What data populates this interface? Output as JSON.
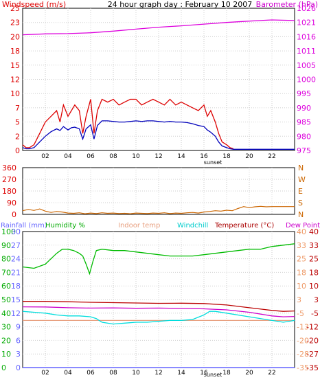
{
  "chart_data": [
    {
      "type": "line",
      "title": "24 hour graph day : February 10 2007",
      "ylabel_left": "Windspeed (m/s)",
      "ylabel_right": "Barometer (hPa)",
      "y_left_ticks": [
        "0",
        "2",
        "5",
        "7",
        "10",
        "12",
        "15",
        "18",
        "20",
        "23",
        "25"
      ],
      "y_right_ticks": [
        "975",
        "980",
        "985",
        "990",
        "995",
        "1000",
        "1005",
        "1011",
        "1016",
        "1021",
        "1026"
      ],
      "ylim_left": [
        0,
        25
      ],
      "ylim_right": [
        975,
        1026
      ],
      "x_ticks": [
        "02",
        "04",
        "06",
        "08",
        "10",
        "12",
        "14",
        "16",
        "18",
        "20",
        "22"
      ],
      "x_annotation": "sunset",
      "xlim": [
        0,
        24
      ],
      "grid": true,
      "series": [
        {
          "name": "Windspeed (m/s)",
          "color": "#dd0000",
          "axis": "left",
          "style": "gust",
          "x": [
            0,
            0.3,
            0.6,
            1,
            1.5,
            2,
            2.5,
            3,
            3.3,
            3.6,
            4,
            4.3,
            4.6,
            5,
            5.3,
            5.6,
            6,
            6.3,
            6.6,
            7,
            7.5,
            8,
            8.5,
            9,
            9.5,
            10,
            10.5,
            11,
            11.5,
            12,
            12.5,
            13,
            13.5,
            14,
            14.5,
            15,
            15.5,
            16,
            16.3,
            16.6,
            17,
            17.3,
            17.6,
            18,
            18.3,
            18.6
          ],
          "values": [
            1,
            0.5,
            0.5,
            1,
            3,
            5,
            6,
            7,
            5,
            8,
            6,
            7,
            8,
            7,
            3,
            6,
            9,
            3,
            7,
            9,
            8.5,
            9,
            8,
            8.5,
            9,
            9,
            8,
            8.5,
            9,
            8.5,
            8,
            9,
            8,
            8.5,
            8,
            7.5,
            7,
            8,
            6,
            7,
            5,
            3,
            1.5,
            1,
            0.5,
            0.3
          ]
        },
        {
          "name": "Windspeed avg",
          "color": "#0000bb",
          "axis": "left",
          "style": "line",
          "x": [
            0,
            0.3,
            0.6,
            1,
            1.5,
            2,
            2.5,
            3,
            3.3,
            3.6,
            4,
            4.3,
            4.6,
            5,
            5.3,
            5.6,
            6,
            6.3,
            6.6,
            7,
            7.5,
            8,
            8.5,
            9,
            9.5,
            10,
            10.5,
            11,
            11.5,
            12,
            12.5,
            13,
            13.5,
            14,
            14.5,
            15,
            15.5,
            16,
            16.3,
            16.6,
            17,
            17.3,
            17.6,
            18,
            18.3,
            18.6,
            19,
            24
          ],
          "values": [
            0.5,
            0.3,
            0.3,
            0.5,
            1.5,
            2.5,
            3.3,
            3.8,
            3.5,
            4.2,
            3.6,
            4,
            4.1,
            3.8,
            2,
            3.8,
            4.5,
            2,
            4.4,
            5.2,
            5.2,
            5.1,
            5,
            5,
            5.1,
            5.2,
            5.1,
            5.2,
            5.2,
            5.1,
            5,
            5.1,
            5,
            5,
            4.9,
            4.7,
            4.4,
            4.2,
            3.6,
            3.2,
            2.5,
            1.5,
            0.8,
            0.5,
            0.3,
            0.2,
            0.2,
            0.2
          ]
        },
        {
          "name": "Barometer (hPa)",
          "color": "#dd00dd",
          "axis": "right",
          "style": "line",
          "x": [
            0,
            2,
            4,
            6,
            8,
            10,
            12,
            14,
            16,
            18,
            20,
            22,
            24
          ],
          "values": [
            1016.5,
            1016.8,
            1016.9,
            1017.2,
            1017.8,
            1018.5,
            1019.2,
            1019.7,
            1020.3,
            1020.9,
            1021.4,
            1021.8,
            1021.6
          ]
        }
      ]
    },
    {
      "type": "line",
      "y_left_ticks": [
        "0",
        "90",
        "180",
        "270",
        "360"
      ],
      "y_right_ticks": [
        "N",
        "S",
        "E",
        "W",
        "N"
      ],
      "ylim": [
        0,
        360
      ],
      "x_ticks": [
        "02",
        "04",
        "06",
        "08",
        "10",
        "12",
        "14",
        "16",
        "18",
        "20",
        "22"
      ],
      "xlim": [
        0,
        24
      ],
      "grid": true,
      "series": [
        {
          "color": "#cc6600",
          "x": [
            0,
            0.5,
            1,
            1.5,
            2,
            2.5,
            3,
            3.5,
            4,
            4.5,
            5,
            5.5,
            6,
            6.5,
            7,
            7.5,
            8,
            8.5,
            9,
            9.5,
            10,
            10.5,
            11,
            11.5,
            12,
            12.5,
            13,
            13.5,
            14,
            14.5,
            15,
            15.5,
            16,
            16.5,
            17,
            17.5,
            18,
            18.5,
            19,
            19.5,
            20,
            20.5,
            21,
            21.5,
            22,
            22.5,
            23,
            23.5,
            24
          ],
          "values": [
            28,
            38,
            30,
            42,
            25,
            15,
            22,
            18,
            10,
            8,
            12,
            5,
            10,
            6,
            12,
            8,
            10,
            6,
            8,
            5,
            10,
            8,
            6,
            10,
            8,
            12,
            6,
            10,
            8,
            12,
            15,
            10,
            18,
            22,
            28,
            25,
            32,
            28,
            45,
            60,
            52,
            58,
            62,
            58,
            60,
            60,
            60,
            60,
            60
          ]
        }
      ]
    },
    {
      "type": "line",
      "legend": [
        "Rainfall (mm)",
        "Humidity %",
        "Indoor temp",
        "Windchill",
        "Temperature (°C)",
        "Dew Point"
      ],
      "y_left_ticks_a": [
        "0",
        "3",
        "6",
        "9",
        "12",
        "15",
        "18",
        "21",
        "24",
        "27",
        "30"
      ],
      "y_left_ticks_b": [
        "0",
        "10",
        "20",
        "30",
        "40",
        "50",
        "60",
        "70",
        "80",
        "90",
        "100"
      ],
      "y_right_ticks_a": [
        "-35",
        "-28",
        "-20",
        "-13",
        "-5",
        "3",
        "10",
        "18",
        "25",
        "33",
        "40"
      ],
      "y_right_ticks_b": [
        "-35",
        "-27",
        "-20",
        "-12",
        "-5",
        "3",
        "10",
        "18",
        "25",
        "33",
        "40"
      ],
      "ylim_rain": [
        0,
        30
      ],
      "ylim_humidity": [
        0,
        100
      ],
      "ylim_temp": [
        -35,
        40
      ],
      "x_ticks": [
        "02",
        "04",
        "06",
        "08",
        "10",
        "12",
        "14",
        "16",
        "18",
        "20",
        "22"
      ],
      "x_annotation": "sunset",
      "xlim": [
        0,
        24
      ],
      "grid": true,
      "series": [
        {
          "name": "Humidity %",
          "color": "#00bb00",
          "axis": "humidity",
          "x": [
            0,
            1,
            2,
            3,
            3.5,
            4,
            4.5,
            5,
            5.3,
            5.6,
            5.9,
            6.2,
            6.5,
            7,
            8,
            9,
            10,
            11,
            12,
            13,
            14,
            15,
            16,
            17,
            18,
            19,
            20,
            21,
            22,
            23,
            24
          ],
          "values": [
            74,
            73,
            76,
            84,
            87,
            87,
            86,
            84,
            82,
            76,
            69,
            78,
            86,
            87,
            86,
            86,
            85,
            84,
            83,
            82,
            82,
            82,
            83,
            84,
            85,
            86,
            87,
            87,
            89,
            90,
            91
          ]
        },
        {
          "name": "Temperature (°C)",
          "color": "#bb0000",
          "axis": "temp",
          "x": [
            0,
            2,
            4,
            6,
            8,
            10,
            12,
            14,
            16,
            18,
            20,
            22,
            23,
            24
          ],
          "values": [
            1.5,
            1.5,
            1.3,
            1,
            0.8,
            0.6,
            0.4,
            0.5,
            0.3,
            -0.5,
            -2,
            -3.5,
            -4,
            -3.8
          ]
        },
        {
          "name": "Dew Point",
          "color": "#cc00cc",
          "axis": "temp",
          "x": [
            0,
            2,
            4,
            6,
            8,
            10,
            12,
            14,
            16,
            18,
            20,
            22,
            23,
            24
          ],
          "values": [
            -1.5,
            -1.6,
            -2,
            -2.2,
            -2.1,
            -2.3,
            -2.2,
            -2.4,
            -2.6,
            -3.2,
            -4.5,
            -6.5,
            -7,
            -6.8
          ]
        },
        {
          "name": "Indoor temp",
          "color": "#e8a080",
          "axis": "temp",
          "x": [
            0,
            24
          ],
          "values": [
            -9,
            -9
          ]
        },
        {
          "name": "Windchill",
          "color": "#00dddd",
          "axis": "temp",
          "style": "noisy",
          "x": [
            0,
            1,
            2,
            3,
            4,
            5,
            6,
            6.5,
            7,
            8,
            9,
            10,
            11,
            12,
            13,
            14,
            15,
            16,
            16.5,
            17,
            18,
            20,
            22,
            23,
            24
          ],
          "values": [
            -4,
            -4.5,
            -5,
            -6,
            -6.5,
            -6.5,
            -7,
            -8,
            -10,
            -11,
            -10.5,
            -10,
            -10,
            -9.5,
            -9,
            -9,
            -8.5,
            -6,
            -4,
            -4,
            -5,
            -7,
            -9,
            -10,
            -9
          ]
        },
        {
          "name": "Rainfall (mm)",
          "color": "#4444ff",
          "axis": "rain",
          "x": [
            0,
            24
          ],
          "values": [
            0,
            0
          ]
        }
      ]
    }
  ]
}
